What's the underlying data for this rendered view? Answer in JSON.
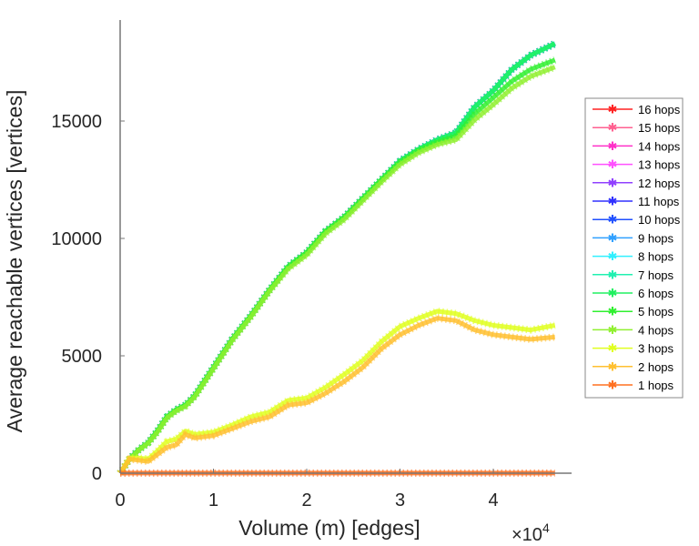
{
  "chart_data": {
    "type": "line",
    "title": "",
    "xlabel": "Volume (m) [edges]",
    "ylabel": "Average reachable vertices [vertices]",
    "x_multiplier": "×10",
    "x_multiplier_exp": "4",
    "xlim": [
      0,
      4.84
    ],
    "ylim": [
      0,
      19300
    ],
    "xticks": [
      "0",
      "1",
      "2",
      "3",
      "4"
    ],
    "yticks": [
      "0",
      "5000",
      "10000",
      "15000"
    ],
    "xtick_values": [
      0,
      1,
      2,
      3,
      4
    ],
    "ytick_values": [
      0,
      5000,
      10000,
      15000
    ],
    "grid": false,
    "legend_position": "outside-right",
    "x": [
      0,
      0.1,
      0.2,
      0.3,
      0.4,
      0.5,
      0.6,
      0.7,
      0.8,
      1.0,
      1.2,
      1.4,
      1.6,
      1.8,
      2.0,
      2.2,
      2.4,
      2.6,
      2.8,
      3.0,
      3.2,
      3.4,
      3.6,
      3.8,
      4.0,
      4.2,
      4.4,
      4.66
    ],
    "series": [
      {
        "name": "16 hops",
        "color": "#ff2020",
        "values": [
          0,
          600,
          1000,
          1300,
          1800,
          2400,
          2700,
          2900,
          3300,
          4500,
          5700,
          6700,
          7800,
          8800,
          9400,
          10300,
          10900,
          11700,
          12500,
          13300,
          13800,
          14200,
          14500,
          15600,
          16300,
          17200,
          17800,
          18300
        ]
      },
      {
        "name": "15 hops",
        "color": "#ff6090",
        "values": [
          0,
          600,
          1000,
          1300,
          1800,
          2400,
          2700,
          2900,
          3300,
          4500,
          5700,
          6700,
          7800,
          8800,
          9400,
          10300,
          10900,
          11700,
          12500,
          13300,
          13800,
          14200,
          14500,
          15600,
          16300,
          17200,
          17800,
          18300
        ]
      },
      {
        "name": "14 hops",
        "color": "#ff30c8",
        "values": [
          0,
          600,
          1000,
          1300,
          1800,
          2400,
          2700,
          2900,
          3300,
          4500,
          5700,
          6700,
          7800,
          8800,
          9400,
          10300,
          10900,
          11700,
          12500,
          13300,
          13800,
          14200,
          14500,
          15600,
          16300,
          17200,
          17800,
          18300
        ]
      },
      {
        "name": "13 hops",
        "color": "#ff50ff",
        "values": [
          0,
          600,
          1000,
          1300,
          1800,
          2400,
          2700,
          2900,
          3300,
          4500,
          5700,
          6700,
          7800,
          8800,
          9400,
          10300,
          10900,
          11700,
          12500,
          13300,
          13800,
          14200,
          14500,
          15600,
          16300,
          17200,
          17800,
          18300
        ]
      },
      {
        "name": "12 hops",
        "color": "#9040ff",
        "values": [
          0,
          600,
          1000,
          1300,
          1800,
          2400,
          2700,
          2900,
          3300,
          4500,
          5700,
          6700,
          7800,
          8800,
          9400,
          10300,
          10900,
          11700,
          12500,
          13300,
          13800,
          14200,
          14500,
          15600,
          16300,
          17200,
          17800,
          18300
        ]
      },
      {
        "name": "11 hops",
        "color": "#3030ff",
        "values": [
          0,
          600,
          1000,
          1300,
          1800,
          2400,
          2700,
          2900,
          3300,
          4500,
          5700,
          6700,
          7800,
          8800,
          9400,
          10300,
          10900,
          11700,
          12500,
          13300,
          13800,
          14200,
          14500,
          15600,
          16300,
          17200,
          17800,
          18300
        ]
      },
      {
        "name": "10 hops",
        "color": "#2050ff",
        "values": [
          0,
          600,
          1000,
          1300,
          1800,
          2400,
          2700,
          2900,
          3300,
          4500,
          5700,
          6700,
          7800,
          8800,
          9400,
          10300,
          10900,
          11700,
          12500,
          13300,
          13800,
          14200,
          14500,
          15600,
          16300,
          17200,
          17800,
          18300
        ]
      },
      {
        "name": "9 hops",
        "color": "#30a0ff",
        "values": [
          0,
          600,
          1000,
          1300,
          1800,
          2400,
          2700,
          2900,
          3300,
          4500,
          5700,
          6700,
          7800,
          8800,
          9400,
          10300,
          10900,
          11700,
          12500,
          13300,
          13800,
          14200,
          14500,
          15600,
          16300,
          17200,
          17800,
          18300
        ]
      },
      {
        "name": "8 hops",
        "color": "#30f0ff",
        "values": [
          0,
          600,
          1000,
          1300,
          1800,
          2400,
          2700,
          2900,
          3300,
          4500,
          5700,
          6700,
          7800,
          8800,
          9400,
          10300,
          10900,
          11700,
          12500,
          13300,
          13800,
          14200,
          14500,
          15600,
          16300,
          17200,
          17800,
          18300
        ]
      },
      {
        "name": "7 hops",
        "color": "#20f0b0",
        "values": [
          0,
          600,
          1000,
          1300,
          1800,
          2400,
          2700,
          2900,
          3300,
          4500,
          5700,
          6700,
          7800,
          8800,
          9400,
          10300,
          10900,
          11700,
          12500,
          13300,
          13800,
          14200,
          14500,
          15600,
          16300,
          17200,
          17800,
          18300
        ]
      },
      {
        "name": "6 hops",
        "color": "#20f060",
        "values": [
          0,
          600,
          1000,
          1300,
          1800,
          2400,
          2700,
          2900,
          3300,
          4500,
          5700,
          6700,
          7800,
          8800,
          9400,
          10300,
          10900,
          11700,
          12500,
          13300,
          13800,
          14200,
          14500,
          15600,
          16300,
          17200,
          17800,
          18300
        ]
      },
      {
        "name": "5 hops",
        "color": "#30f030",
        "values": [
          0,
          600,
          1000,
          1300,
          1800,
          2400,
          2700,
          2900,
          3300,
          4500,
          5700,
          6700,
          7800,
          8800,
          9400,
          10300,
          10900,
          11700,
          12500,
          13250,
          13750,
          14100,
          14350,
          15300,
          16000,
          16700,
          17200,
          17600
        ]
      },
      {
        "name": "4 hops",
        "color": "#90f030",
        "values": [
          0,
          580,
          980,
          1280,
          1750,
          2350,
          2650,
          2850,
          3250,
          4450,
          5650,
          6650,
          7750,
          8700,
          9300,
          10200,
          10800,
          11600,
          12400,
          13150,
          13650,
          14000,
          14200,
          15050,
          15700,
          16400,
          16900,
          17300
        ]
      },
      {
        "name": "3 hops",
        "color": "#e0ff20",
        "values": [
          0,
          650,
          650,
          600,
          950,
          1350,
          1450,
          1800,
          1650,
          1750,
          2050,
          2400,
          2600,
          3100,
          3200,
          3650,
          4200,
          4800,
          5600,
          6250,
          6600,
          6900,
          6800,
          6500,
          6300,
          6200,
          6100,
          6300
        ]
      },
      {
        "name": "2 hops",
        "color": "#ffc030",
        "values": [
          0,
          600,
          550,
          500,
          800,
          1100,
          1200,
          1650,
          1500,
          1600,
          1900,
          2200,
          2400,
          2900,
          3000,
          3400,
          3900,
          4500,
          5300,
          5900,
          6300,
          6600,
          6500,
          6100,
          5900,
          5800,
          5700,
          5800
        ]
      },
      {
        "name": "1 hops",
        "color": "#ff7020",
        "values": [
          0,
          2,
          2,
          2,
          2,
          2,
          2,
          2,
          2,
          2,
          2,
          2,
          2,
          2,
          2,
          2,
          2,
          2,
          2,
          2,
          2,
          2,
          2,
          2,
          2,
          2,
          2,
          2
        ]
      }
    ]
  }
}
